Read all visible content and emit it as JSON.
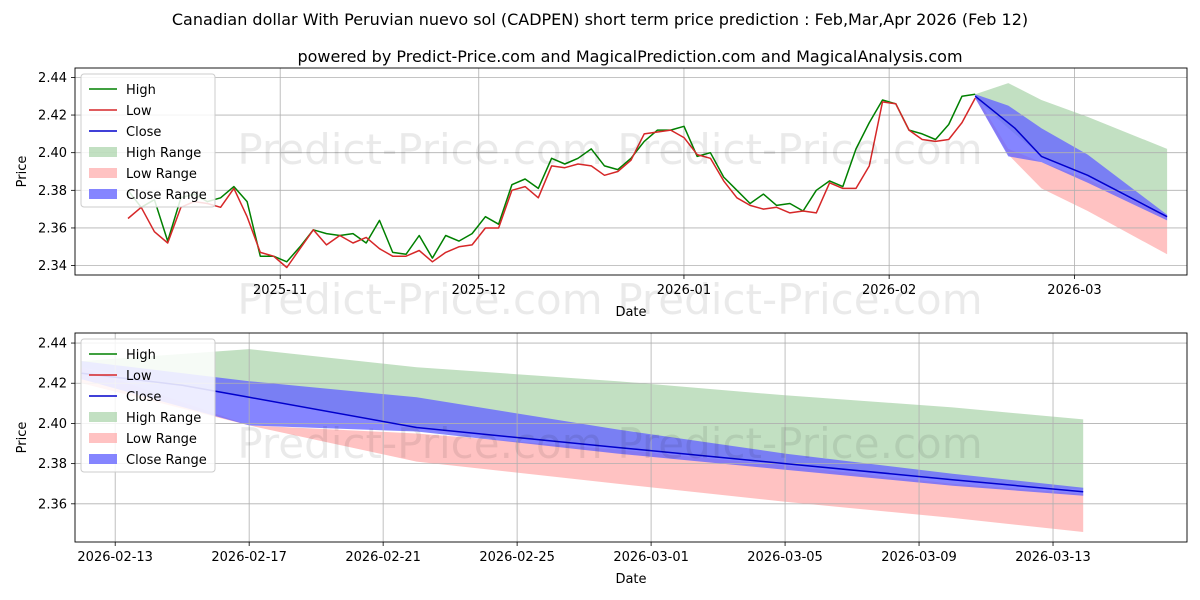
{
  "title": "Canadian dollar With Peruvian nuevo sol (CADPEN) short term price prediction : Feb,Mar,Apr 2026 (Feb 12)",
  "subtitle": "powered by Predict-Price.com and MagicalPrediction.com and MagicalAnalysis.com",
  "watermark": "Predict-Price.com",
  "colors": {
    "high": "#008000",
    "low": "#d62728",
    "close": "#0000cc",
    "high_range": "#99cc99",
    "low_range": "#ff9999",
    "close_range": "#6666ff"
  },
  "chart_data": [
    {
      "type": "line",
      "xlabel": "Date",
      "ylabel": "Price",
      "ylim": [
        2.335,
        2.445
      ],
      "xlim": [
        0,
        168
      ],
      "x_ticks": [
        {
          "label": "2025-11",
          "x": 31
        },
        {
          "label": "2025-12",
          "x": 61
        },
        {
          "label": "2026-01",
          "x": 92
        },
        {
          "label": "2026-02",
          "x": 123
        },
        {
          "label": "2026-03",
          "x": 151
        }
      ],
      "y_ticks": [
        {
          "label": "2.34",
          "v": 2.34
        },
        {
          "label": "2.36",
          "v": 2.36
        },
        {
          "label": "2.38",
          "v": 2.38
        },
        {
          "label": "2.40",
          "v": 2.4
        },
        {
          "label": "2.42",
          "v": 2.42
        },
        {
          "label": "2.44",
          "v": 2.44
        }
      ],
      "legend": [
        "High",
        "Low",
        "Close",
        "High Range",
        "Low Range",
        "Close Range"
      ],
      "legend_position": "upper-left",
      "series": [
        {
          "name": "High",
          "x": [
            8,
            10,
            12,
            14,
            16,
            18,
            20,
            22,
            24,
            26,
            28,
            30,
            32,
            34,
            36,
            38,
            40,
            42,
            44,
            46,
            48,
            50,
            52,
            54,
            56,
            58,
            60,
            62,
            64,
            66,
            68,
            70,
            72,
            74,
            76,
            78,
            80,
            82,
            84,
            86,
            88,
            90,
            92,
            94,
            96,
            98,
            100,
            102,
            104,
            106,
            108,
            110,
            112,
            114,
            116,
            118,
            120,
            122,
            124,
            126,
            128,
            130,
            132,
            134,
            136
          ],
          "y": [
            2.38,
            2.371,
            2.375,
            2.353,
            2.376,
            2.378,
            2.374,
            2.376,
            2.382,
            2.374,
            2.345,
            2.345,
            2.342,
            2.35,
            2.359,
            2.357,
            2.356,
            2.357,
            2.352,
            2.364,
            2.347,
            2.346,
            2.356,
            2.344,
            2.356,
            2.353,
            2.357,
            2.366,
            2.362,
            2.383,
            2.386,
            2.381,
            2.397,
            2.394,
            2.397,
            2.402,
            2.393,
            2.391,
            2.397,
            2.406,
            2.412,
            2.412,
            2.414,
            2.398,
            2.4,
            2.387,
            2.38,
            2.373,
            2.378,
            2.372,
            2.373,
            2.369,
            2.38,
            2.385,
            2.382,
            2.402,
            2.416,
            2.428,
            2.426,
            2.412,
            2.41,
            2.407,
            2.415,
            2.43,
            2.431
          ]
        },
        {
          "name": "Low",
          "x": [
            8,
            10,
            12,
            14,
            16,
            18,
            20,
            22,
            24,
            26,
            28,
            30,
            32,
            34,
            36,
            38,
            40,
            42,
            44,
            46,
            48,
            50,
            52,
            54,
            56,
            58,
            60,
            62,
            64,
            66,
            68,
            70,
            72,
            74,
            76,
            78,
            80,
            82,
            84,
            86,
            88,
            90,
            92,
            94,
            96,
            98,
            100,
            102,
            104,
            106,
            108,
            110,
            112,
            114,
            116,
            118,
            120,
            122,
            124,
            126,
            128,
            130,
            132,
            134,
            136
          ],
          "y": [
            2.365,
            2.371,
            2.358,
            2.352,
            2.371,
            2.374,
            2.373,
            2.371,
            2.381,
            2.366,
            2.347,
            2.345,
            2.339,
            2.349,
            2.359,
            2.351,
            2.356,
            2.352,
            2.355,
            2.349,
            2.345,
            2.345,
            2.348,
            2.342,
            2.347,
            2.35,
            2.351,
            2.36,
            2.36,
            2.38,
            2.382,
            2.376,
            2.393,
            2.392,
            2.394,
            2.393,
            2.388,
            2.39,
            2.396,
            2.41,
            2.411,
            2.412,
            2.408,
            2.399,
            2.397,
            2.385,
            2.376,
            2.372,
            2.37,
            2.371,
            2.368,
            2.369,
            2.368,
            2.384,
            2.381,
            2.381,
            2.393,
            2.427,
            2.426,
            2.412,
            2.407,
            2.406,
            2.407,
            2.416,
            2.429
          ]
        },
        {
          "name": "Close",
          "x": [
            136,
            142,
            146,
            153,
            165
          ],
          "y": [
            2.43,
            2.413,
            2.398,
            2.388,
            2.366
          ]
        }
      ],
      "ranges": [
        {
          "name": "High Range",
          "x": [
            136,
            141,
            146,
            153,
            165
          ],
          "upper": [
            2.431,
            2.437,
            2.428,
            2.419,
            2.402
          ],
          "lower": [
            2.429,
            2.413,
            2.398,
            2.388,
            2.367
          ]
        },
        {
          "name": "Low Range",
          "x": [
            136,
            141,
            146,
            153,
            165
          ],
          "upper": [
            2.431,
            2.402,
            2.395,
            2.386,
            2.366
          ],
          "lower": [
            2.429,
            2.399,
            2.381,
            2.369,
            2.346
          ]
        },
        {
          "name": "Close Range",
          "x": [
            136,
            141,
            146,
            153,
            165
          ],
          "upper": [
            2.431,
            2.425,
            2.413,
            2.399,
            2.367
          ],
          "lower": [
            2.429,
            2.398,
            2.395,
            2.384,
            2.364
          ]
        }
      ]
    },
    {
      "type": "line",
      "xlabel": "Date",
      "ylabel": "Price",
      "ylim": [
        2.341,
        2.445
      ],
      "xlim": [
        -0.2,
        33
      ],
      "x_ticks": [
        {
          "label": "2026-02-13",
          "x": 1
        },
        {
          "label": "2026-02-17",
          "x": 5
        },
        {
          "label": "2026-02-21",
          "x": 9
        },
        {
          "label": "2026-02-25",
          "x": 13
        },
        {
          "label": "2026-03-01",
          "x": 17
        },
        {
          "label": "2026-03-05",
          "x": 21
        },
        {
          "label": "2026-03-09",
          "x": 25
        },
        {
          "label": "2026-03-13",
          "x": 29
        }
      ],
      "y_ticks": [
        {
          "label": "2.36",
          "v": 2.36
        },
        {
          "label": "2.38",
          "v": 2.38
        },
        {
          "label": "2.40",
          "v": 2.4
        },
        {
          "label": "2.42",
          "v": 2.42
        },
        {
          "label": "2.44",
          "v": 2.44
        }
      ],
      "legend": [
        "High",
        "Low",
        "Close",
        "High Range",
        "Low Range",
        "Close Range"
      ],
      "legend_position": "upper-left",
      "series": [
        {
          "name": "Close",
          "x": [
            0,
            3,
            5,
            10,
            16,
            21,
            26,
            29.9
          ],
          "y": [
            2.425,
            2.419,
            2.413,
            2.398,
            2.388,
            2.38,
            2.372,
            2.366
          ]
        }
      ],
      "ranges": [
        {
          "name": "High Range",
          "x": [
            0,
            5,
            10,
            16,
            21,
            26,
            29.9
          ],
          "upper": [
            2.431,
            2.437,
            2.428,
            2.421,
            2.414,
            2.408,
            2.402
          ],
          "lower": [
            2.428,
            2.413,
            2.398,
            2.388,
            2.38,
            2.372,
            2.367
          ]
        },
        {
          "name": "Low Range",
          "x": [
            0,
            5,
            10,
            16,
            21,
            26,
            29.9
          ],
          "upper": [
            2.428,
            2.399,
            2.395,
            2.387,
            2.379,
            2.37,
            2.365
          ],
          "lower": [
            2.42,
            2.399,
            2.381,
            2.37,
            2.361,
            2.353,
            2.346
          ]
        },
        {
          "name": "Close Range",
          "x": [
            0,
            5,
            10,
            16,
            21,
            26,
            29.9
          ],
          "upper": [
            2.431,
            2.421,
            2.413,
            2.397,
            2.385,
            2.375,
            2.368
          ],
          "lower": [
            2.422,
            2.399,
            2.396,
            2.385,
            2.377,
            2.369,
            2.364
          ]
        }
      ]
    }
  ]
}
